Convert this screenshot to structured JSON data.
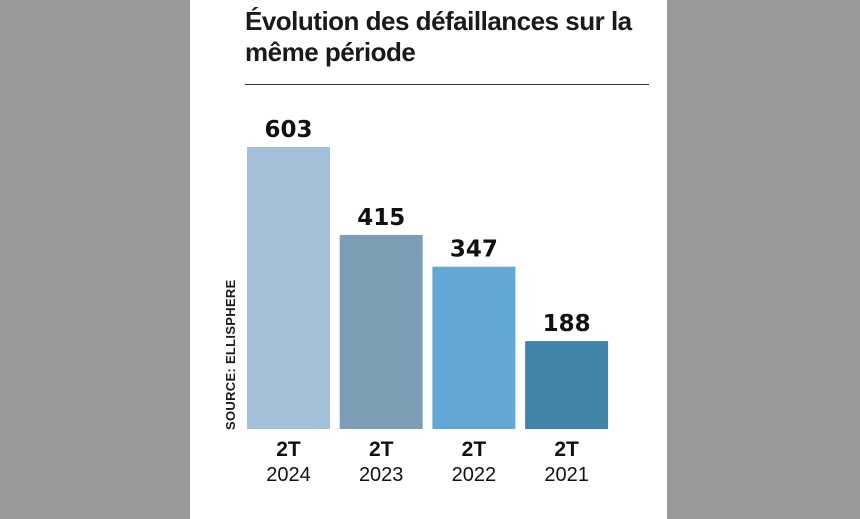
{
  "title": "Évolution des défaillances sur la même période",
  "source": "SOURCE: ELLISPHERE",
  "chart_data": {
    "type": "bar",
    "title": "Évolution des défaillances sur la même période",
    "categories": [
      "2T 2024",
      "2T 2023",
      "2T 2022",
      "2T 2021"
    ],
    "category_lines": [
      [
        "2T",
        "2024"
      ],
      [
        "2T",
        "2023"
      ],
      [
        "2T",
        "2022"
      ],
      [
        "2T",
        "2021"
      ]
    ],
    "values": [
      603,
      415,
      347,
      188
    ],
    "colors": [
      "#a3bfda",
      "#7b9db5",
      "#62a8d6",
      "#4384ab"
    ],
    "xlabel": "",
    "ylabel": "",
    "grid": false,
    "ylim": [
      0,
      603
    ],
    "source": "SOURCE: ELLISPHERE"
  }
}
